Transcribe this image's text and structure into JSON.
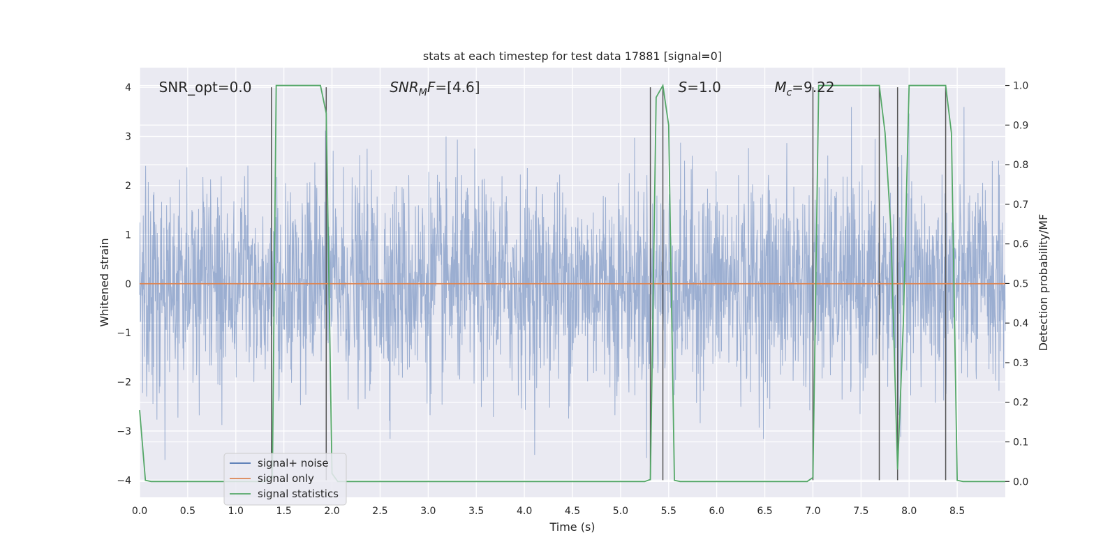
{
  "chart_data": {
    "type": "line",
    "title": "stats at each timestep for test data 17881 [signal=0]",
    "xlabel": "Time (s)",
    "ylabel": "Whitened strain",
    "ylabel_right": "Detection probability/MF",
    "xlim": [
      0.0,
      9.0
    ],
    "ylim": [
      -4.35,
      4.4
    ],
    "ylim_right": [
      -0.04,
      1.045
    ],
    "x_ticks": [
      0.0,
      0.5,
      1.0,
      1.5,
      2.0,
      2.5,
      3.0,
      3.5,
      4.0,
      4.5,
      5.0,
      5.5,
      6.0,
      6.5,
      7.0,
      7.5,
      8.0,
      8.5
    ],
    "x_tick_labels": [
      "0.0",
      "0.5",
      "1.0",
      "1.5",
      "2.0",
      "2.5",
      "3.0",
      "3.5",
      "4.0",
      "4.5",
      "5.0",
      "5.5",
      "6.0",
      "6.5",
      "7.0",
      "7.5",
      "8.0",
      "8.5"
    ],
    "y_ticks": [
      4,
      3,
      2,
      1,
      0,
      -1,
      -2,
      -3,
      -4
    ],
    "y_tick_labels": [
      "4",
      "3",
      "2",
      "1",
      "0",
      "−1",
      "−2",
      "−3",
      "−4"
    ],
    "y_right_ticks": [
      1.0,
      0.9,
      0.8,
      0.7,
      0.6,
      0.5,
      0.4,
      0.3,
      0.2,
      0.1,
      0.0
    ],
    "y_right_tick_labels": [
      "1.0",
      "0.9",
      "0.8",
      "0.7",
      "0.6",
      "0.5",
      "0.4",
      "0.3",
      "0.2",
      "0.1",
      "0.0"
    ],
    "grid": true,
    "legend_position": "lower-left",
    "legend": [
      {
        "label": "signal+ noise",
        "color": "#4c72b0"
      },
      {
        "label": "signal only",
        "color": "#dd8452"
      },
      {
        "label": "signal statistics",
        "color": "#55a868"
      }
    ],
    "annotations": [
      {
        "label": "SNR_opt=0.0",
        "x": 0.2,
        "y": 4.0
      },
      {
        "label": "SNR_MF=[4.6]",
        "x": 2.6,
        "y": 4.0
      },
      {
        "label": "S=1.0",
        "x": 5.6,
        "y": 4.0
      },
      {
        "label": "M_c=9.22",
        "x": 6.6,
        "y": 4.0
      }
    ],
    "series": [
      {
        "name": "signal+ noise",
        "color": "#4c72b0",
        "axis": "left",
        "note": "dense whitened-strain noise, amplitude roughly within ±3.5"
      },
      {
        "name": "signal only",
        "color": "#dd8452",
        "axis": "left",
        "x": [
          0.0,
          9.0
        ],
        "y": [
          0.0,
          0.0
        ]
      },
      {
        "name": "signal statistics",
        "color": "#55a868",
        "axis": "right",
        "x": [
          0.0,
          0.06,
          0.12,
          0.5,
          1.0,
          1.3,
          1.38,
          1.42,
          1.5,
          1.8,
          1.88,
          1.94,
          2.0,
          2.06,
          3.0,
          4.0,
          5.0,
          5.25,
          5.31,
          5.37,
          5.44,
          5.5,
          5.56,
          5.62,
          6.0,
          6.5,
          6.94,
          7.0,
          7.06,
          7.5,
          7.69,
          7.75,
          7.81,
          7.88,
          7.94,
          8.0,
          8.38,
          8.44,
          8.5,
          8.56,
          9.0
        ],
        "y": [
          0.18,
          0.003,
          0.0,
          0.0,
          0.0,
          0.0,
          0.01,
          1.0,
          1.0,
          1.0,
          1.0,
          0.93,
          0.02,
          0.0,
          0.0,
          0.0,
          0.0,
          0.0,
          0.005,
          0.97,
          1.0,
          0.9,
          0.003,
          0.0,
          0.0,
          0.0,
          0.0,
          0.01,
          1.0,
          1.0,
          1.0,
          0.88,
          0.64,
          0.03,
          0.4,
          1.0,
          1.0,
          0.88,
          0.003,
          0.0,
          0.0
        ]
      }
    ],
    "vertical_markers": {
      "color": "#555555",
      "x": [
        1.37,
        1.94,
        5.31,
        5.44,
        7.0,
        7.69,
        7.88,
        8.38
      ],
      "y_range": [
        -4.0,
        4.0
      ]
    }
  }
}
